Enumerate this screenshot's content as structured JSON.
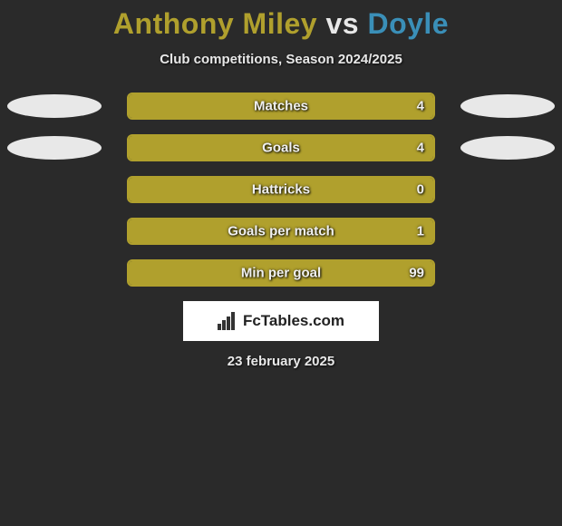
{
  "title": {
    "player1": "Anthony Miley",
    "vs": "vs",
    "player2": "Doyle",
    "player1_color": "#b0a02d",
    "vs_color": "#e8e8e8",
    "player2_color": "#3a8fb8",
    "fontsize": 32
  },
  "subtitle": "Club competitions, Season 2024/2025",
  "background_color": "#2a2a2a",
  "ellipse_colors": {
    "left": "#e8e8e8",
    "right": "#e8e8e8"
  },
  "bar_style": {
    "border_color": "#b0a02d",
    "fill_color": "#b0a02d",
    "track_bg": "#2a2a2a",
    "label_color": "#f0f0f0",
    "label_fontsize": 15,
    "border_radius": 6,
    "track_width": 340,
    "track_height": 30
  },
  "stats": [
    {
      "label": "Matches",
      "value": "4",
      "fill_pct": 100,
      "show_ellipses": true
    },
    {
      "label": "Goals",
      "value": "4",
      "fill_pct": 100,
      "show_ellipses": true
    },
    {
      "label": "Hattricks",
      "value": "0",
      "fill_pct": 100,
      "show_ellipses": false
    },
    {
      "label": "Goals per match",
      "value": "1",
      "fill_pct": 100,
      "show_ellipses": false
    },
    {
      "label": "Min per goal",
      "value": "99",
      "fill_pct": 100,
      "show_ellipses": false
    }
  ],
  "logo": {
    "text": "FcTables.com",
    "bg": "#ffffff",
    "text_color": "#222222"
  },
  "date": "23 february 2025"
}
